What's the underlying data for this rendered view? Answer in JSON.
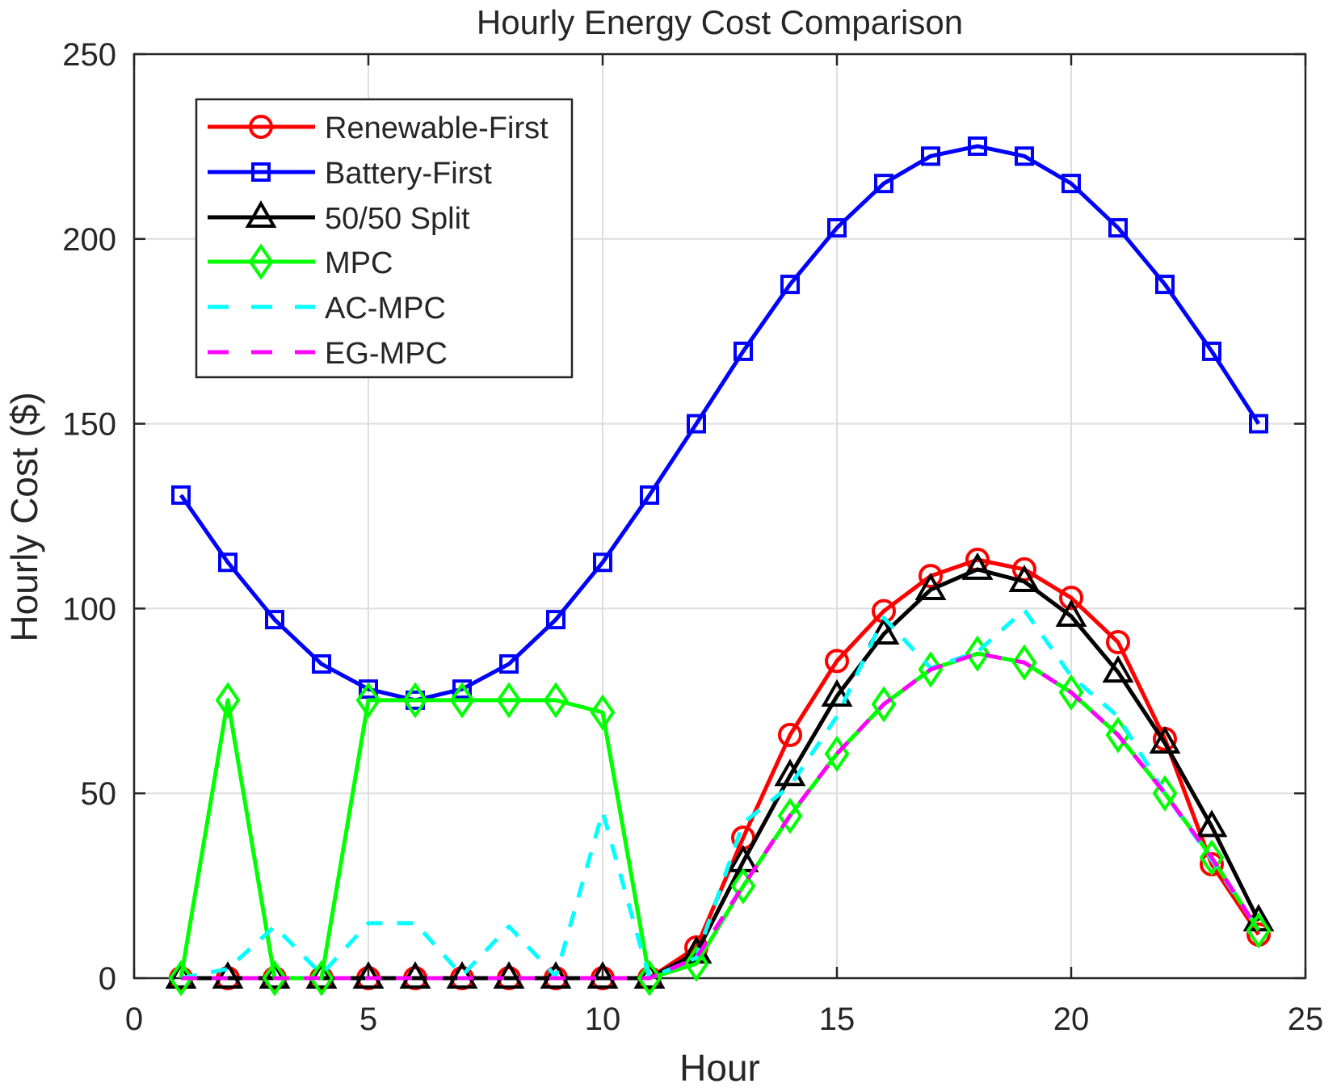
{
  "chart_data": {
    "type": "line",
    "title": "Hourly Energy Cost Comparison",
    "xlabel": "Hour",
    "ylabel": "Hourly Cost ($)",
    "xlim": [
      0,
      25
    ],
    "ylim": [
      0,
      250
    ],
    "xticks": [
      0,
      5,
      10,
      15,
      20,
      25
    ],
    "yticks": [
      0,
      50,
      100,
      150,
      200,
      250
    ],
    "xtick_labels": [
      "0",
      "5",
      "10",
      "15",
      "20",
      "25"
    ],
    "ytick_labels": [
      "0",
      "50",
      "100",
      "150",
      "200",
      "250"
    ],
    "grid": true,
    "legend_position": "top-left",
    "x": [
      1,
      2,
      3,
      4,
      5,
      6,
      7,
      8,
      9,
      10,
      11,
      12,
      13,
      14,
      15,
      16,
      17,
      18,
      19,
      20,
      21,
      22,
      23,
      24
    ],
    "series": [
      {
        "name": "Renewable-First",
        "color": "#ff0000",
        "line": "solid",
        "marker": "circle",
        "values": [
          0,
          0,
          0,
          0,
          0,
          0,
          0,
          0,
          0,
          0,
          0,
          8.3,
          38.0,
          65.8,
          85.8,
          99.3,
          108.8,
          113.2,
          110.6,
          102.9,
          90.9,
          64.7,
          30.8,
          11.8
        ]
      },
      {
        "name": "Battery-First",
        "color": "#0000ff",
        "line": "solid",
        "marker": "square",
        "values": [
          130.7,
          112.5,
          97.0,
          85.0,
          78.2,
          75.2,
          78.2,
          85.0,
          97.0,
          112.5,
          130.7,
          150.0,
          169.6,
          187.7,
          203.0,
          215.0,
          222.4,
          225.1,
          222.4,
          215.0,
          203.0,
          187.7,
          169.6,
          150.0
        ]
      },
      {
        "name": "50/50 Split",
        "color": "#000000",
        "line": "solid",
        "marker": "triangle",
        "values": [
          0,
          0,
          0,
          0,
          0,
          0,
          0,
          0,
          0,
          0,
          0,
          6.8,
          31.5,
          54.8,
          76.3,
          93.1,
          105.1,
          110.6,
          107.3,
          97.9,
          82.8,
          63.6,
          41.0,
          15.5
        ]
      },
      {
        "name": "MPC",
        "color": "#00ff00",
        "line": "solid",
        "marker": "diamond",
        "values": [
          0,
          75.2,
          0,
          0,
          75.2,
          75.2,
          75.2,
          75.2,
          75.2,
          71.9,
          0,
          3.9,
          24.9,
          43.9,
          60.7,
          74.1,
          83.5,
          87.8,
          85.4,
          77.3,
          65.8,
          50.0,
          32.6,
          12.9
        ]
      },
      {
        "name": "AC-MPC",
        "color": "#00ffff",
        "line": "dashed",
        "marker": "none",
        "values": [
          0,
          2.5,
          14.0,
          1.0,
          14.9,
          14.9,
          0.7,
          14.0,
          0.5,
          45.0,
          0,
          5.5,
          42.0,
          52.0,
          70.8,
          97.5,
          83.9,
          88.3,
          99.6,
          81.7,
          70.8,
          50.0,
          32.0,
          13.0
        ]
      },
      {
        "name": "EG-MPC",
        "color": "#ff00ff",
        "line": "dashed",
        "marker": "none",
        "values": [
          0,
          0,
          0,
          0,
          0,
          0,
          0,
          0,
          0,
          0,
          0,
          5.5,
          25.0,
          44.0,
          60.7,
          74.1,
          83.5,
          87.8,
          85.4,
          77.3,
          65.8,
          50.0,
          32.6,
          12.9
        ]
      }
    ]
  }
}
